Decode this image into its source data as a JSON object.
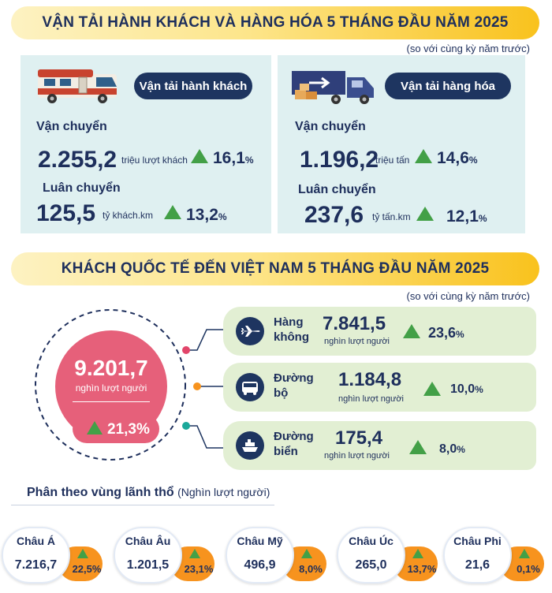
{
  "section1": {
    "title": "VẬN TẢI HÀNH KHÁCH VÀ HÀNG HÓA 5 THÁNG ĐẦU NĂM 2025",
    "note": "(so với cùng kỳ năm trước)",
    "passenger": {
      "pill": "Vận tải hành khách",
      "transport_label": "Vận chuyển",
      "transport_value": "2.255,2",
      "transport_unit": "triệu lượt khách",
      "transport_pct": "16,1",
      "rotation_label": "Luân chuyển",
      "rotation_value": "125,5",
      "rotation_unit": "tỷ khách.km",
      "rotation_pct": "13,2"
    },
    "cargo": {
      "pill": "Vận tải hàng hóa",
      "transport_label": "Vận chuyển",
      "transport_value": "1.196,2",
      "transport_unit": "triệu tấn",
      "transport_pct": "14,6",
      "rotation_label": "Luân chuyển",
      "rotation_value": "237,6",
      "rotation_unit": "tỷ tấn.km",
      "rotation_pct": "12,1"
    },
    "percent_sign": "%"
  },
  "section2": {
    "title": "KHÁCH QUỐC TẾ ĐẾN VIỆT NAM 5 THÁNG ĐẦU NĂM 2025",
    "note": "(so với cùng kỳ năm trước)",
    "total_value": "9.201,7",
    "total_unit": "nghìn lượt người",
    "total_pct": "21,3%",
    "modes": [
      {
        "name1": "Hàng",
        "name2": "không",
        "value": "7.841,5",
        "unit": "nghìn lượt người",
        "pct": "23,6",
        "icon": "airplane-icon"
      },
      {
        "name1": "Đường",
        "name2": "bộ",
        "value": "1.184,8",
        "unit": "nghìn lượt người",
        "pct": "10,0",
        "icon": "bus-icon"
      },
      {
        "name1": "Đường",
        "name2": "biển",
        "value": "175,4",
        "unit": "nghìn lượt người",
        "pct": "8,0",
        "icon": "ship-icon"
      }
    ],
    "dot_colors": [
      "#e2456a",
      "#f7931e",
      "#1aa89a"
    ]
  },
  "regions": {
    "title": "Phân theo vùng lãnh thổ",
    "title_unit": "(Nghìn lượt người)",
    "items": [
      {
        "name": "Châu Á",
        "value": "7.216,7",
        "pct": "22,5"
      },
      {
        "name": "Châu Âu",
        "value": "1.201,5",
        "pct": "23,1"
      },
      {
        "name": "Châu Mỹ",
        "value": "496,9",
        "pct": "8,0"
      },
      {
        "name": "Châu Úc",
        "value": "265,0",
        "pct": "13,7"
      },
      {
        "name": "Châu Phi",
        "value": "21,6",
        "pct": "0,1"
      }
    ]
  },
  "colors": {
    "navy": "#1e3560",
    "green": "#43a047",
    "pink": "#e6607a",
    "orange": "#f7931e",
    "panel": "#dff0f1",
    "mode_bg": "#e2efd3"
  }
}
